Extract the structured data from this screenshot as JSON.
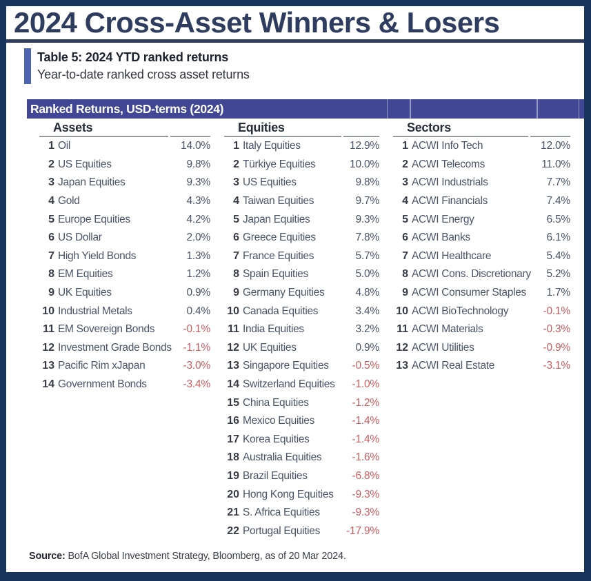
{
  "title": "2024 Cross-Asset Winners & Losers",
  "caption": {
    "table_label": "Table 5: 2024 YTD ranked returns",
    "description": "Year-to-date ranked cross asset returns"
  },
  "chart_data": {
    "type": "table",
    "title": "Ranked Returns, USD-terms (2024)",
    "value_unit": "% year-to-date return, USD terms",
    "groups": [
      {
        "name": "Assets",
        "items": [
          {
            "rank": 1,
            "label": "Oil",
            "value": 14.0
          },
          {
            "rank": 2,
            "label": "US Equities",
            "value": 9.8
          },
          {
            "rank": 3,
            "label": "Japan Equities",
            "value": 9.3
          },
          {
            "rank": 4,
            "label": "Gold",
            "value": 4.3
          },
          {
            "rank": 5,
            "label": "Europe Equities",
            "value": 4.2
          },
          {
            "rank": 6,
            "label": "US Dollar",
            "value": 2.0
          },
          {
            "rank": 7,
            "label": "High Yield Bonds",
            "value": 1.3
          },
          {
            "rank": 8,
            "label": "EM Equities",
            "value": 1.2
          },
          {
            "rank": 9,
            "label": "UK Equities",
            "value": 0.9
          },
          {
            "rank": 10,
            "label": "Industrial Metals",
            "value": 0.4
          },
          {
            "rank": 11,
            "label": "EM Sovereign Bonds",
            "value": -0.1
          },
          {
            "rank": 12,
            "label": "Investment Grade Bonds",
            "value": -1.1
          },
          {
            "rank": 13,
            "label": "Pacific Rim xJapan",
            "value": -3.0
          },
          {
            "rank": 14,
            "label": "Government Bonds",
            "value": -3.4
          }
        ]
      },
      {
        "name": "Equities",
        "items": [
          {
            "rank": 1,
            "label": "Italy Equities",
            "value": 12.9
          },
          {
            "rank": 2,
            "label": "Türkiye Equities",
            "value": 10.0
          },
          {
            "rank": 3,
            "label": "US Equities",
            "value": 9.8
          },
          {
            "rank": 4,
            "label": "Taiwan Equities",
            "value": 9.7
          },
          {
            "rank": 5,
            "label": "Japan Equities",
            "value": 9.3
          },
          {
            "rank": 6,
            "label": "Greece Equities",
            "value": 7.8
          },
          {
            "rank": 7,
            "label": "France Equities",
            "value": 5.7
          },
          {
            "rank": 8,
            "label": "Spain Equities",
            "value": 5.0
          },
          {
            "rank": 9,
            "label": "Germany Equities",
            "value": 4.8
          },
          {
            "rank": 10,
            "label": "Canada Equities",
            "value": 3.4
          },
          {
            "rank": 11,
            "label": "India Equities",
            "value": 3.2
          },
          {
            "rank": 12,
            "label": "UK Equities",
            "value": 0.9
          },
          {
            "rank": 13,
            "label": "Singapore Equities",
            "value": -0.5
          },
          {
            "rank": 14,
            "label": "Switzerland Equities",
            "value": -1.0
          },
          {
            "rank": 15,
            "label": "China Equities",
            "value": -1.2
          },
          {
            "rank": 16,
            "label": "Mexico Equities",
            "value": -1.4
          },
          {
            "rank": 17,
            "label": "Korea Equities",
            "value": -1.4
          },
          {
            "rank": 18,
            "label": "Australia Equities",
            "value": -1.6
          },
          {
            "rank": 19,
            "label": "Brazil Equities",
            "value": -6.8
          },
          {
            "rank": 20,
            "label": "Hong Kong Equities",
            "value": -9.3
          },
          {
            "rank": 21,
            "label": "S. Africa Equities",
            "value": -9.3
          },
          {
            "rank": 22,
            "label": "Portugal Equities",
            "value": -17.9
          }
        ]
      },
      {
        "name": "Sectors",
        "items": [
          {
            "rank": 1,
            "label": "ACWI Info Tech",
            "value": 12.0
          },
          {
            "rank": 2,
            "label": "ACWI Telecoms",
            "value": 11.0
          },
          {
            "rank": 3,
            "label": "ACWI Industrials",
            "value": 7.7
          },
          {
            "rank": 4,
            "label": "ACWI Financials",
            "value": 7.4
          },
          {
            "rank": 5,
            "label": "ACWI Energy",
            "value": 6.5
          },
          {
            "rank": 6,
            "label": "ACWI Banks",
            "value": 6.1
          },
          {
            "rank": 7,
            "label": "ACWI Healthcare",
            "value": 5.4
          },
          {
            "rank": 8,
            "label": "ACWI Cons. Discretionary",
            "value": 5.2
          },
          {
            "rank": 9,
            "label": "ACWI Consumer Staples",
            "value": 1.7
          },
          {
            "rank": 10,
            "label": "ACWI BioTechnology",
            "value": -0.1
          },
          {
            "rank": 11,
            "label": "ACWI Materials",
            "value": -0.3
          },
          {
            "rank": 12,
            "label": "ACWI Utilities",
            "value": -0.9
          },
          {
            "rank": 13,
            "label": "ACWI Real Estate",
            "value": -3.1
          }
        ]
      }
    ]
  },
  "source": {
    "label": "Source:",
    "text": "BofA Global Investment Strategy, Bloomberg, as of 20 Mar 2024."
  },
  "colors": {
    "frame": "#17355d",
    "title_text": "#2e3c60",
    "header_bar": "#424795",
    "accent_bar": "#5065b1",
    "positive_text": "#4a5468",
    "negative_text": "#cd5c5f"
  }
}
